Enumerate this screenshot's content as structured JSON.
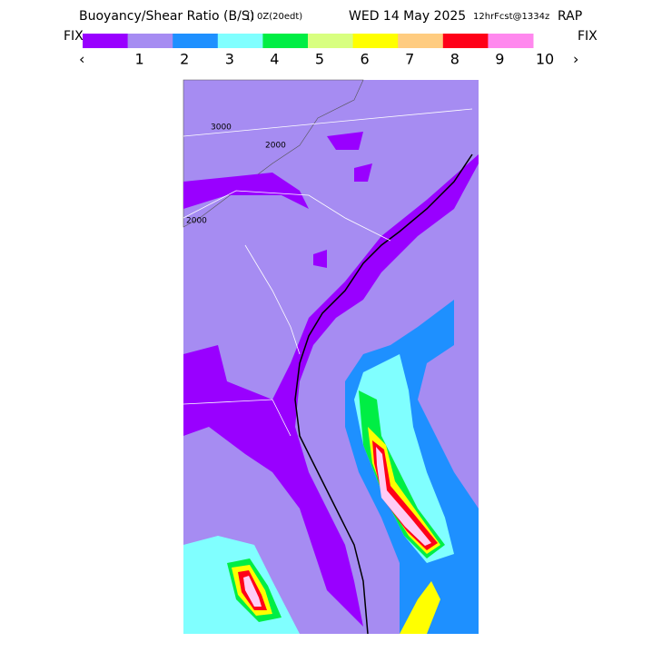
{
  "header": {
    "title": "Buoyancy/Shear Ratio (B/S)",
    "valid_prefix": "[] 0Z(20edt)",
    "valid_date": "WED 14 May 2025",
    "forecast": "12hrFcst@1334z",
    "model": "RAP"
  },
  "legend": {
    "left": "FIX",
    "right": "FIX",
    "prev": "‹",
    "next": "›",
    "colors": [
      "#9900ff",
      "#a68cf2",
      "#1e90ff",
      "#80ffff",
      "#00ee44",
      "#d8ff80",
      "#ffff00",
      "#ffcc80",
      "#ff0018",
      "#ff88ee"
    ],
    "labels": [
      1,
      2,
      3,
      4,
      5,
      6,
      7,
      8,
      9,
      10
    ]
  },
  "map": {
    "contour_labels": [
      "2000",
      "2000",
      "3000"
    ]
  }
}
